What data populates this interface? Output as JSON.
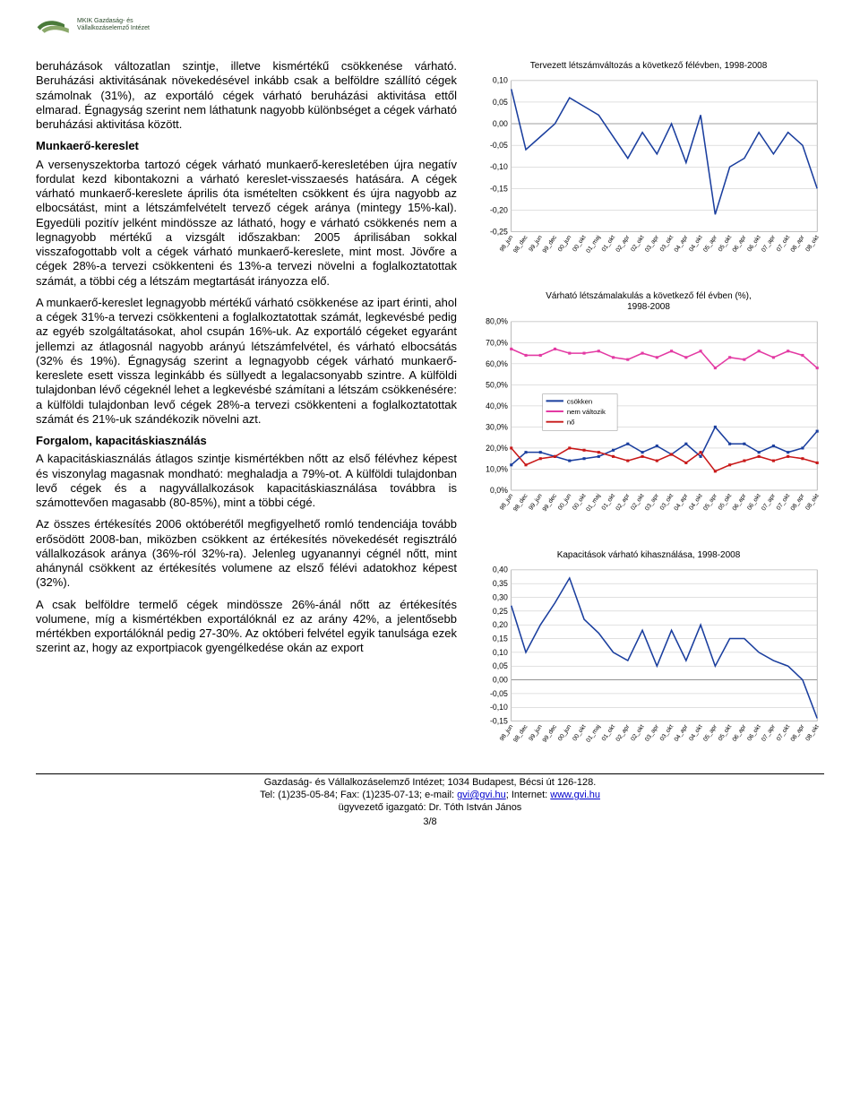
{
  "logo": {
    "line1": "MKIK Gazdaság- és",
    "line2": "Vállalkozáselemző Intézet"
  },
  "text": {
    "p1": "beruházások változatlan szintje, illetve kismértékű csökkenése várható. Beruházási aktivitásának növekedésével inkább csak a belföldre szállító cégek számolnak (31%), az exportáló cégek várható beruházási aktivitása ettől elmarad. Égnagyság szerint nem láthatunk nagyobb különbséget a cégek várható beruházási aktivitása között.",
    "h1": "Munkaerő-kereslet",
    "p2": "A versenyszektorba tartozó cégek várható munkaerő-keresletében újra negatív fordulat kezd kibontakozni a várható kereslet-visszaesés hatására. A cégek várható munkaerő-kereslete április óta ismételten csökkent és újra nagyobb az elbocsátást, mint a létszámfelvételt tervező cégek aránya (mintegy 15%-kal). Egyedüli pozitív jelként mindössze az látható, hogy e várható csökkenés nem a legnagyobb mértékű a vizsgált időszakban: 2005 áprilisában sokkal visszafogottabb volt a cégek várható munkaerő-kereslete, mint most. Jövőre a cégek 28%-a tervezi csökkenteni és 13%-a tervezi növelni a foglalkoztatottak számát, a többi cég a létszám megtartását irányozza elő.",
    "p3": "A munkaerő-kereslet legnagyobb mértékű várható csökkenése az ipart érinti, ahol a cégek 31%-a tervezi csökkenteni a foglalkoztatottak számát, legkevésbé pedig az egyéb szolgáltatásokat, ahol csupán 16%-uk. Az exportáló cégeket egyaránt jellemzi az átlagosnál nagyobb arányú létszámfelvétel, és várható elbocsátás (32% és 19%). Égnagyság szerint a legnagyobb cégek várható munkaerő-kereslete esett vissza leginkább és süllyedt a legalacsonyabb szintre. A külföldi tulajdonban lévő cégeknél lehet a legkevésbé számítani a létszám csökkenésére: a külföldi tulajdonban levő cégek 28%-a tervezi csökkenteni a foglalkoztatottak számát és 21%-uk szándékozik növelni azt.",
    "h2": "Forgalom, kapacitáskiasználás",
    "p4": "A kapacitáskiasználás átlagos szintje kismértékben nőtt az első félévhez képest és viszonylag magasnak mondható: meghaladja a 79%-ot. A külföldi tulajdonban levő cégek és a nagyvállalkozások kapacitáskiasználása továbbra is számottevően magasabb (80-85%), mint a többi cégé.",
    "p5": "Az összes értékesítés 2006 októberétől megfigyelhető romló tendenciája tovább erősödött 2008-ban, miközben csökkent az értékesítés növekedését regisztráló vállalkozások aránya (36%-ról 32%-ra). Jelenleg ugyanannyi cégnél nőtt, mint ahánynál csökkent az értékesítés volumene az elsző félévi adatokhoz képest (32%).",
    "p6": "A csak belföldre termelő cégek mindössze 26%-ánál nőtt az értékesítés volumene, míg a kismértékben exportálóknál ez az arány 42%, a jelentősebb mértékben exportálóknál pedig 27-30%. Az októberi felvétel egyik tanulsága ezek szerint az, hogy az exportpiacok gyengélkedése okán az export"
  },
  "charts": {
    "c1": {
      "title": "Tervezett létszámváltozás a következő félévben, 1998-2008",
      "ylabels": [
        "0,10",
        "0,05",
        "0,00",
        "-0,05",
        "-0,10",
        "-0,15",
        "-0,20",
        "-0,25"
      ],
      "ylim": [
        -0.25,
        0.1
      ],
      "ytick_step": 0.05,
      "line_color": "#1a3e9e",
      "grid_color": "#bfbfbf",
      "background_color": "#ffffff",
      "xlabels": [
        "98_jun",
        "98_dec",
        "99_jun",
        "99_dec",
        "00_jun",
        "00_okt",
        "01_maj",
        "01_okt",
        "02_apr",
        "02_okt",
        "03_apr",
        "03_okt",
        "04_apr",
        "04_okt",
        "05_apr",
        "05_okt",
        "06_apr",
        "06_okt",
        "07_apr",
        "07_okt",
        "08_apr",
        "08_okt"
      ],
      "values": [
        0.08,
        -0.06,
        -0.03,
        0.0,
        0.06,
        0.04,
        0.02,
        -0.03,
        -0.08,
        -0.02,
        -0.07,
        0.0,
        -0.09,
        0.02,
        -0.21,
        -0.1,
        -0.08,
        -0.02,
        -0.07,
        -0.02,
        -0.05,
        -0.15
      ]
    },
    "c2": {
      "title": "Várható létszámalakulás a következő fél évben (%),\n1998-2008",
      "ylabels": [
        "80,0%",
        "70,0%",
        "60,0%",
        "50,0%",
        "40,0%",
        "30,0%",
        "20,0%",
        "10,0%",
        "0,0%"
      ],
      "ylim": [
        0,
        80
      ],
      "ytick_step": 10,
      "background_color": "#ffffff",
      "grid_color": "#bfbfbf",
      "legend": [
        "csökken",
        "nem változik",
        "nő"
      ],
      "series_colors": {
        "csokken": "#1a3e9e",
        "nemvaltozik": "#e33aa3",
        "no": "#c81818"
      },
      "xlabels": [
        "98_jun",
        "98_dec",
        "99_jun",
        "99_dec",
        "00_jun",
        "00_okt",
        "01_maj",
        "01_okt",
        "02_apr",
        "02_okt",
        "03_apr",
        "03_okt",
        "04_apr",
        "04_okt",
        "05_apr",
        "05_okt",
        "06_apr",
        "06_okt",
        "07_apr",
        "07_okt",
        "08_apr",
        "08_okt"
      ],
      "csokken": [
        12,
        18,
        18,
        16,
        14,
        15,
        16,
        19,
        22,
        18,
        21,
        17,
        22,
        16,
        30,
        22,
        22,
        18,
        21,
        18,
        20,
        28
      ],
      "nemvaltozik": [
        67,
        64,
        64,
        67,
        65,
        65,
        66,
        63,
        62,
        65,
        63,
        66,
        63,
        66,
        58,
        63,
        62,
        66,
        63,
        66,
        64,
        58
      ],
      "no": [
        20,
        12,
        15,
        16,
        20,
        19,
        18,
        16,
        14,
        16,
        14,
        17,
        13,
        18,
        9,
        12,
        14,
        16,
        14,
        16,
        15,
        13
      ]
    },
    "c3": {
      "title": "Kapacitások várható kihasználása, 1998-2008",
      "ylabels": [
        "0,40",
        "0,35",
        "0,30",
        "0,25",
        "0,20",
        "0,15",
        "0,10",
        "0,05",
        "0,00",
        "-0,05",
        "-0,10",
        "-0,15"
      ],
      "ylim": [
        -0.15,
        0.4
      ],
      "ytick_step": 0.05,
      "line_color": "#1a3e9e",
      "grid_color": "#bfbfbf",
      "background_color": "#ffffff",
      "xlabels": [
        "98_jun",
        "98_dec",
        "99_jun",
        "99_dec",
        "00_jun",
        "00_okt",
        "01_maj",
        "01_okt",
        "02_apr",
        "02_okt",
        "03_apr",
        "03_okt",
        "04_apr",
        "04_okt",
        "05_apr",
        "05_okt",
        "06_apr",
        "06_okt",
        "07_apr",
        "07_okt",
        "08_apr",
        "08_okt"
      ],
      "values": [
        0.27,
        0.1,
        0.2,
        0.28,
        0.37,
        0.22,
        0.17,
        0.1,
        0.07,
        0.18,
        0.05,
        0.18,
        0.07,
        0.2,
        0.05,
        0.15,
        0.15,
        0.1,
        0.07,
        0.05,
        0.0,
        -0.14
      ]
    }
  },
  "footer": {
    "line1": "Gazdaság- és Vállalkozáselemző Intézet; 1034 Budapest, Bécsi út 126-128.",
    "line2_a": "Tel: (1)235-05-84;  Fax: (1)235-07-13;  e-mail: ",
    "email": "gvi@gvi.hu",
    "line2_b": ";  Internet: ",
    "url": "www.gvi.hu",
    "line3": "ügyvezető igazgató: Dr. Tóth István János",
    "pagenum": "3/8"
  }
}
